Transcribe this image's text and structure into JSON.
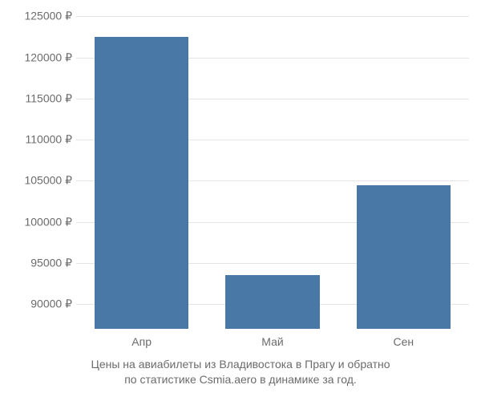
{
  "chart": {
    "type": "bar",
    "categories": [
      "Апр",
      "Май",
      "Сен"
    ],
    "values": [
      122500,
      93500,
      104500
    ],
    "bar_color": "#4a78a6",
    "background_color": "#ffffff",
    "grid_color": "#e5e5e5",
    "text_color": "#6b6b6b",
    "ymin": 87000,
    "ymax": 126000,
    "yticks": [
      90000,
      95000,
      100000,
      105000,
      110000,
      115000,
      120000,
      125000
    ],
    "ytick_labels": [
      "90000 ₽",
      "95000 ₽",
      "100000 ₽",
      "105000 ₽",
      "110000 ₽",
      "115000 ₽",
      "120000 ₽",
      "125000 ₽"
    ],
    "bar_width_ratio": 0.72,
    "label_fontsize": 14,
    "caption_fontsize": 14
  },
  "caption": {
    "line1": "Цены на авиабилеты из Владивостока в Прагу и обратно",
    "line2": "по статистике Csmia.aero в динамике за год."
  }
}
